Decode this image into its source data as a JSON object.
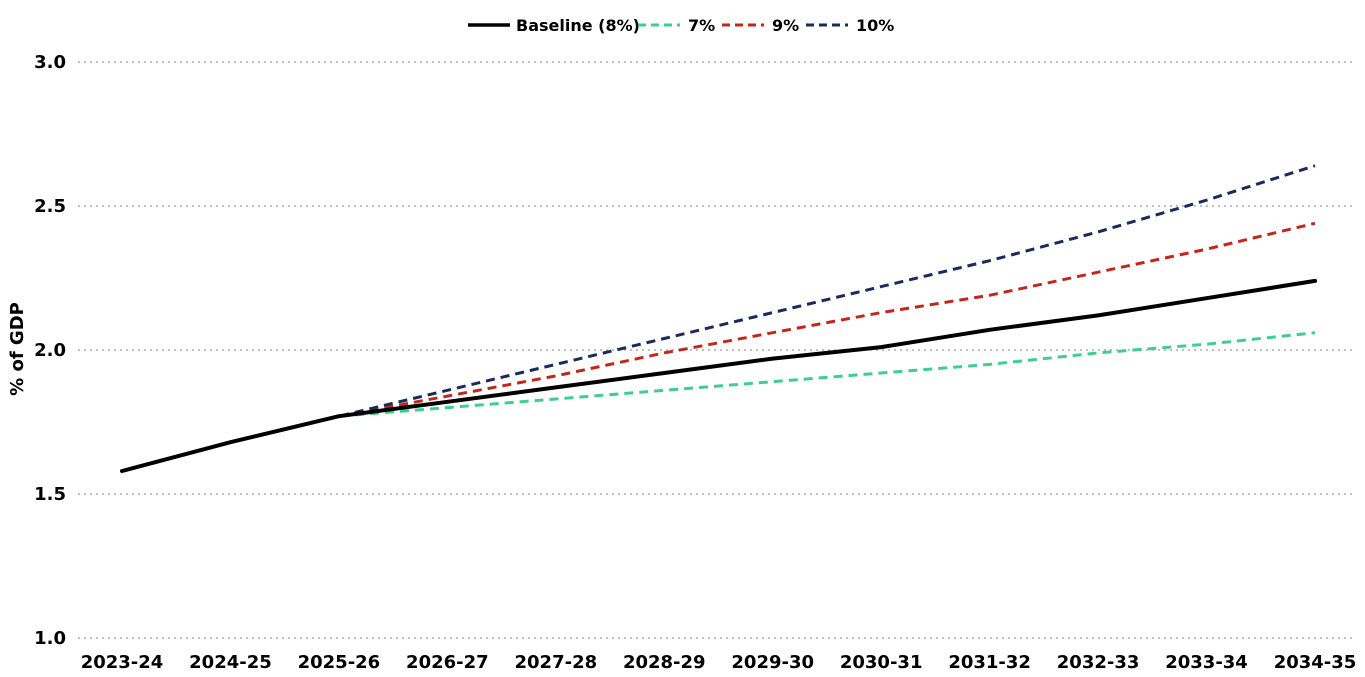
{
  "chart_data": {
    "type": "line",
    "title": "",
    "xlabel": "",
    "ylabel": "% of GDP",
    "ylim": [
      1.0,
      3.0
    ],
    "yticks": [
      "1.0",
      "1.5",
      "2.0",
      "2.5",
      "3.0"
    ],
    "grid": "horizontal-dotted",
    "legend_position": "top-center",
    "categories": [
      "2023-24",
      "2024-25",
      "2025-26",
      "2026-27",
      "2027-28",
      "2028-29",
      "2029-30",
      "2030-31",
      "2031-32",
      "2032-33",
      "2033-34",
      "2034-35"
    ],
    "series": [
      {
        "name": "Baseline (8%)",
        "color": "#000000",
        "style": "solid",
        "values": [
          1.58,
          1.68,
          1.77,
          1.82,
          1.87,
          1.92,
          1.97,
          2.01,
          2.07,
          2.12,
          2.18,
          2.24
        ]
      },
      {
        "name": "7%",
        "color": "#3ecf8e",
        "style": "dashed",
        "values": [
          1.58,
          1.68,
          1.77,
          1.8,
          1.83,
          1.86,
          1.89,
          1.92,
          1.95,
          1.99,
          2.02,
          2.06
        ]
      },
      {
        "name": "9%",
        "color": "#c0281e",
        "style": "dashed",
        "values": [
          1.58,
          1.68,
          1.77,
          1.84,
          1.91,
          1.99,
          2.06,
          2.13,
          2.19,
          2.27,
          2.35,
          2.44
        ]
      },
      {
        "name": "10%",
        "color": "#1a2a5a",
        "style": "dashed",
        "values": [
          1.58,
          1.68,
          1.77,
          1.86,
          1.95,
          2.04,
          2.13,
          2.22,
          2.31,
          2.41,
          2.52,
          2.64
        ]
      }
    ]
  }
}
